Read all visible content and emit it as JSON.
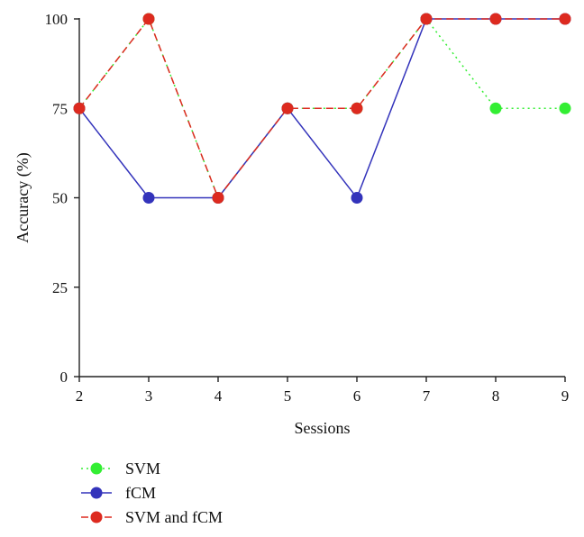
{
  "chart_data": {
    "type": "line",
    "title": "",
    "xlabel": "Sessions",
    "ylabel": "Accuracy (%)",
    "x": [
      2,
      3,
      4,
      5,
      6,
      7,
      8,
      9
    ],
    "xlim": [
      2,
      9
    ],
    "ylim": [
      0,
      100
    ],
    "yticks": [
      0,
      25,
      50,
      75,
      100
    ],
    "xticks": [
      2,
      3,
      4,
      5,
      6,
      7,
      8,
      9
    ],
    "grid": false,
    "legend_position": "bottom-left",
    "series": [
      {
        "name": "SVM",
        "color": "#33ee33",
        "dash": "dotted",
        "marker": "circle",
        "values": [
          75,
          100,
          50,
          75,
          75,
          100,
          75,
          75
        ]
      },
      {
        "name": "fCM",
        "color": "#3333bb",
        "dash": "solid",
        "marker": "circle",
        "values": [
          75,
          50,
          50,
          75,
          50,
          100,
          100,
          100
        ]
      },
      {
        "name": "SVM and fCM",
        "color": "#dd2a1f",
        "dash": "dashed",
        "marker": "circle",
        "values": [
          75,
          100,
          50,
          75,
          75,
          100,
          100,
          100
        ]
      }
    ]
  }
}
